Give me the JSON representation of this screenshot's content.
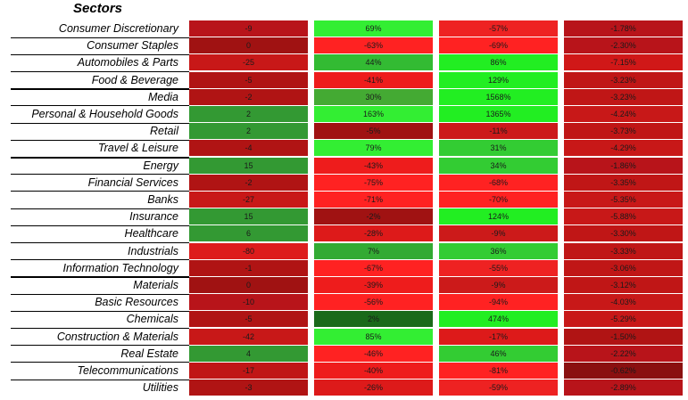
{
  "title": "Sectors",
  "chart_data": {
    "type": "table",
    "rows": [
      {
        "label": "Consumer Discretionary",
        "values": [
          "-9",
          "69%",
          "-57%",
          "-1.78%"
        ],
        "colors": [
          "#b8141a",
          "#33ee33",
          "#ee2222",
          "#b8141a"
        ]
      },
      {
        "label": "Consumer Staples",
        "values": [
          "0",
          "-63%",
          "-69%",
          "-2.30%"
        ],
        "colors": [
          "#a01212",
          "#ff2222",
          "#ff2222",
          "#b8141a"
        ]
      },
      {
        "label": "Automobiles & Parts",
        "values": [
          "-25",
          "44%",
          "86%",
          "-7.15%"
        ],
        "colors": [
          "#c81818",
          "#33bb33",
          "#22ee22",
          "#d01818"
        ]
      },
      {
        "label": "Food & Beverage",
        "values": [
          "-5",
          "-41%",
          "129%",
          "-3.23%"
        ],
        "colors": [
          "#b01414",
          "#ee1c1c",
          "#22ee22",
          "#c01616"
        ]
      },
      {
        "label": "Media",
        "values": [
          "-2",
          "30%",
          "1568%",
          "-3.23%"
        ],
        "colors": [
          "#b01414",
          "#44aa33",
          "#22ee22",
          "#c01616"
        ]
      },
      {
        "label": "Personal & Household Goods",
        "values": [
          "2",
          "163%",
          "1365%",
          "-4.24%"
        ],
        "colors": [
          "#339933",
          "#33ee33",
          "#22ee22",
          "#c81818"
        ]
      },
      {
        "label": "Retail",
        "values": [
          "2",
          "-5%",
          "-11%",
          "-3.73%"
        ],
        "colors": [
          "#339933",
          "#a01212",
          "#cc1a1a",
          "#c01616"
        ]
      },
      {
        "label": "Travel & Leisure",
        "values": [
          "-4",
          "79%",
          "31%",
          "-4.29%"
        ],
        "colors": [
          "#b01414",
          "#33ee33",
          "#33cc33",
          "#c81818"
        ]
      },
      {
        "label": "Energy",
        "values": [
          "15",
          "-43%",
          "34%",
          "-1.86%"
        ],
        "colors": [
          "#339933",
          "#ee1c1c",
          "#33cc33",
          "#b8141a"
        ]
      },
      {
        "label": "Financial Services",
        "values": [
          "-2",
          "-75%",
          "-68%",
          "-3.35%"
        ],
        "colors": [
          "#b01414",
          "#ff2222",
          "#ff2222",
          "#c01616"
        ]
      },
      {
        "label": "Banks",
        "values": [
          "-27",
          "-71%",
          "-70%",
          "-5.35%"
        ],
        "colors": [
          "#c81818",
          "#ff2222",
          "#ff2222",
          "#c81818"
        ]
      },
      {
        "label": "Insurance",
        "values": [
          "15",
          "-2%",
          "124%",
          "-5.88%"
        ],
        "colors": [
          "#339933",
          "#a01212",
          "#22ee22",
          "#c81818"
        ]
      },
      {
        "label": "Healthcare",
        "values": [
          "6",
          "-28%",
          "-9%",
          "-3.30%"
        ],
        "colors": [
          "#339933",
          "#dd1a1a",
          "#cc1a1a",
          "#c01616"
        ]
      },
      {
        "label": "Industrials",
        "values": [
          "-80",
          "7%",
          "36%",
          "-3.33%"
        ],
        "colors": [
          "#dd1c1c",
          "#33aa33",
          "#33cc33",
          "#c01616"
        ]
      },
      {
        "label": "Information Technology",
        "values": [
          "-1",
          "-67%",
          "-55%",
          "-3.06%"
        ],
        "colors": [
          "#b01414",
          "#ff2222",
          "#ee2222",
          "#c01616"
        ]
      },
      {
        "label": "Materials",
        "values": [
          "0",
          "-39%",
          "-9%",
          "-3.12%"
        ],
        "colors": [
          "#a01212",
          "#ee1c1c",
          "#cc1a1a",
          "#c01616"
        ]
      },
      {
        "label": "Basic Resources",
        "values": [
          "-10",
          "-56%",
          "-94%",
          "-4.03%"
        ],
        "colors": [
          "#b8141a",
          "#ff2222",
          "#ff2222",
          "#c81818"
        ]
      },
      {
        "label": "Chemicals",
        "values": [
          "-5",
          "2%",
          "474%",
          "-5.29%"
        ],
        "colors": [
          "#b01414",
          "#1a6a1a",
          "#22ee22",
          "#c81818"
        ]
      },
      {
        "label": "Construction & Materials",
        "values": [
          "-42",
          "85%",
          "-17%",
          "-1.50%"
        ],
        "colors": [
          "#c81818",
          "#33ee33",
          "#dd1a1a",
          "#b01414"
        ]
      },
      {
        "label": "Real Estate",
        "values": [
          "4",
          "-46%",
          "46%",
          "-2.22%"
        ],
        "colors": [
          "#339933",
          "#ff2222",
          "#33cc33",
          "#b8141a"
        ]
      },
      {
        "label": "Telecommunications",
        "values": [
          "-17",
          "-40%",
          "-81%",
          "-0.62%"
        ],
        "colors": [
          "#c01616",
          "#ee1c1c",
          "#ff2222",
          "#8a1010"
        ]
      },
      {
        "label": "Utilities",
        "values": [
          "-3",
          "-26%",
          "-59%",
          "-2.89%"
        ],
        "colors": [
          "#b01414",
          "#dd1a1a",
          "#ee2222",
          "#b8141a"
        ]
      }
    ]
  }
}
